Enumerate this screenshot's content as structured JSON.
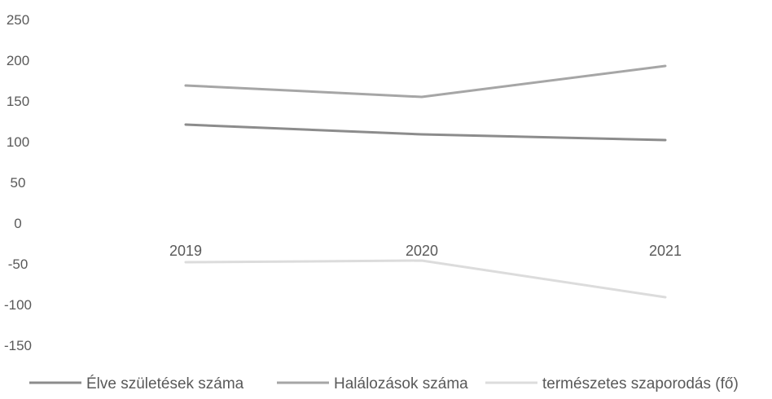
{
  "chart_data": {
    "type": "line",
    "categories": [
      "2019",
      "2020",
      "2021"
    ],
    "series": [
      {
        "name": "Élve születések száma",
        "values": [
          121,
          109,
          102
        ],
        "color": "#8c8c8c"
      },
      {
        "name": "Halálozások száma",
        "values": [
          169,
          155,
          193
        ],
        "color": "#a6a6a6"
      },
      {
        "name": "természetes szaporodás (fő)",
        "values": [
          -48,
          -46,
          -91
        ],
        "color": "#dcdcdc"
      }
    ],
    "yticks": [
      "250",
      "200",
      "150",
      "100",
      "50",
      "0",
      "-50",
      "-100",
      "-150"
    ],
    "ylim": [
      -150,
      250
    ],
    "grid": false,
    "legend": "bottom"
  }
}
